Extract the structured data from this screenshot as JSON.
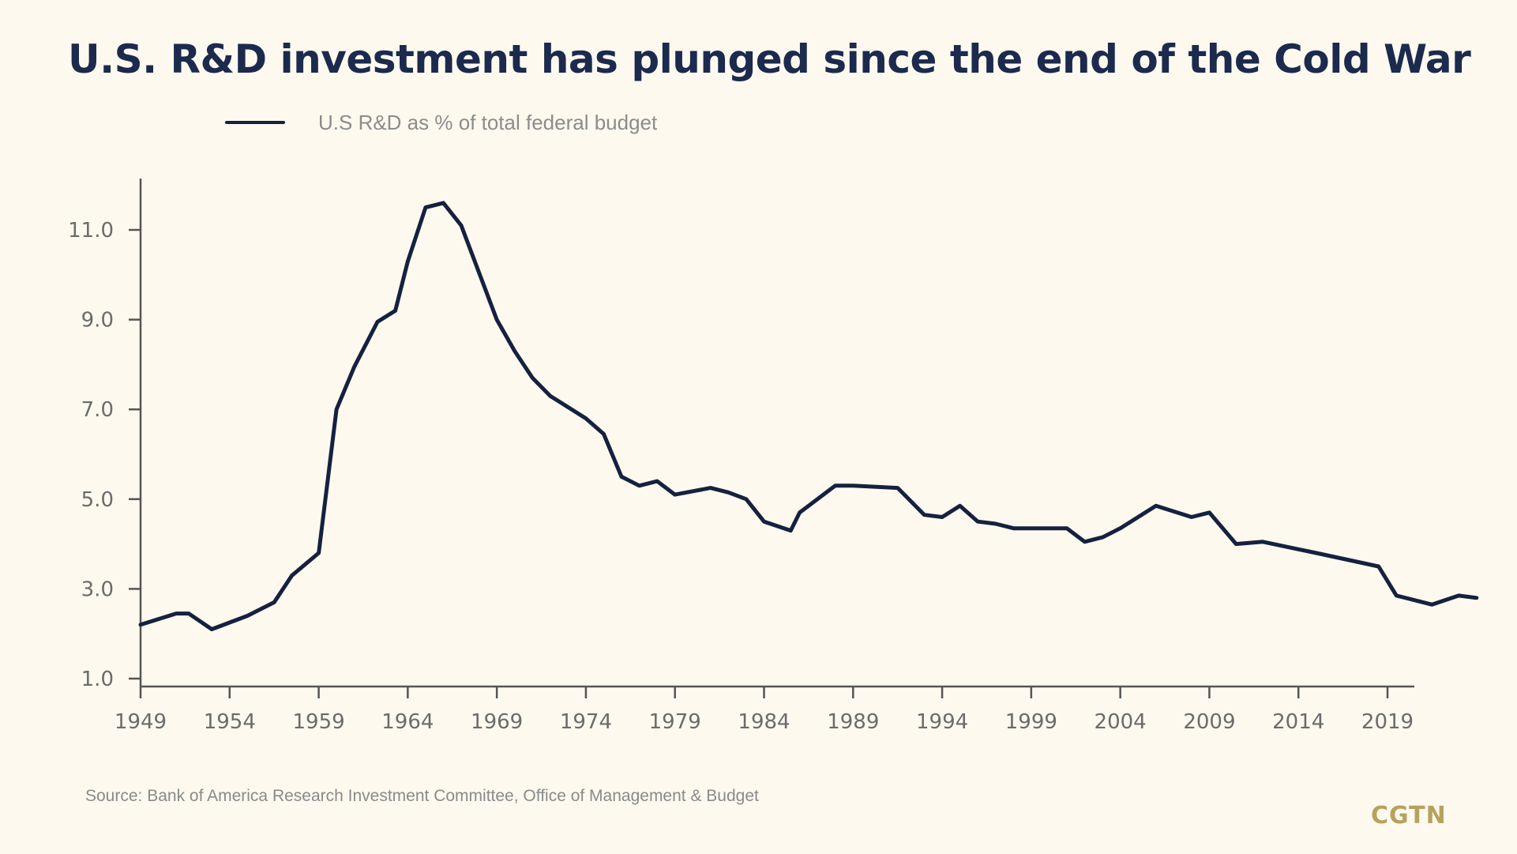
{
  "title": "U.S. R&D investment has plunged since the end of the Cold War",
  "legend": {
    "series_label": "U.S R&D as % of total federal budget"
  },
  "source": "Source: Bank of America Research Investment Committee, Office of Management & Budget",
  "logo": "CGTN",
  "colors": {
    "background": "#fdf9ef",
    "title": "#1b2a4d",
    "line": "#15213f",
    "axis": "#555555",
    "logo": "#b7a25b"
  },
  "chart_data": {
    "type": "line",
    "title": "U.S. R&D investment has plunged since the end of the Cold War",
    "xlabel": "",
    "ylabel": "",
    "xlim": [
      1949,
      2024
    ],
    "ylim": [
      1.0,
      12.0
    ],
    "x_ticks": [
      "1949",
      "1954",
      "1959",
      "1964",
      "1969",
      "1974",
      "1979",
      "1984",
      "1989",
      "1994",
      "1999",
      "2004",
      "2009",
      "2014",
      "2019"
    ],
    "y_ticks": [
      "1.0",
      "3.0",
      "5.0",
      "7.0",
      "9.0",
      "11.0"
    ],
    "grid": false,
    "legend_position": "top-left",
    "series": [
      {
        "name": "U.S R&D as % of total federal budget",
        "x": [
          1949,
          1951,
          1951.7,
          1953,
          1955,
          1956.5,
          1957.5,
          1959,
          1960,
          1961,
          1962.3,
          1963.3,
          1964,
          1965,
          1966,
          1967,
          1969,
          1970,
          1971,
          1972,
          1974,
          1975,
          1976,
          1977,
          1978,
          1979,
          1981,
          1982,
          1983,
          1984,
          1985.5,
          1986,
          1988,
          1989,
          1991.5,
          1993,
          1994,
          1995,
          1996,
          1997,
          1998,
          2001,
          2002,
          2003,
          2004,
          2006,
          2008,
          2009,
          2010.5,
          2012,
          2015,
          2018.5,
          2019.5,
          2021.5,
          2023,
          2024
        ],
        "y": [
          2.2,
          2.45,
          2.45,
          2.1,
          2.4,
          2.7,
          3.3,
          3.8,
          7.0,
          7.95,
          8.95,
          9.2,
          10.3,
          11.5,
          11.6,
          11.1,
          9.0,
          8.3,
          7.7,
          7.3,
          6.8,
          6.45,
          5.5,
          5.3,
          5.4,
          5.1,
          5.25,
          5.15,
          5.0,
          4.5,
          4.3,
          4.7,
          5.3,
          5.3,
          5.25,
          4.65,
          4.6,
          4.85,
          4.5,
          4.45,
          4.35,
          4.35,
          4.05,
          4.15,
          4.35,
          4.85,
          4.6,
          4.7,
          4.0,
          4.05,
          3.8,
          3.5,
          2.85,
          2.65,
          2.85,
          2.8
        ]
      }
    ]
  }
}
